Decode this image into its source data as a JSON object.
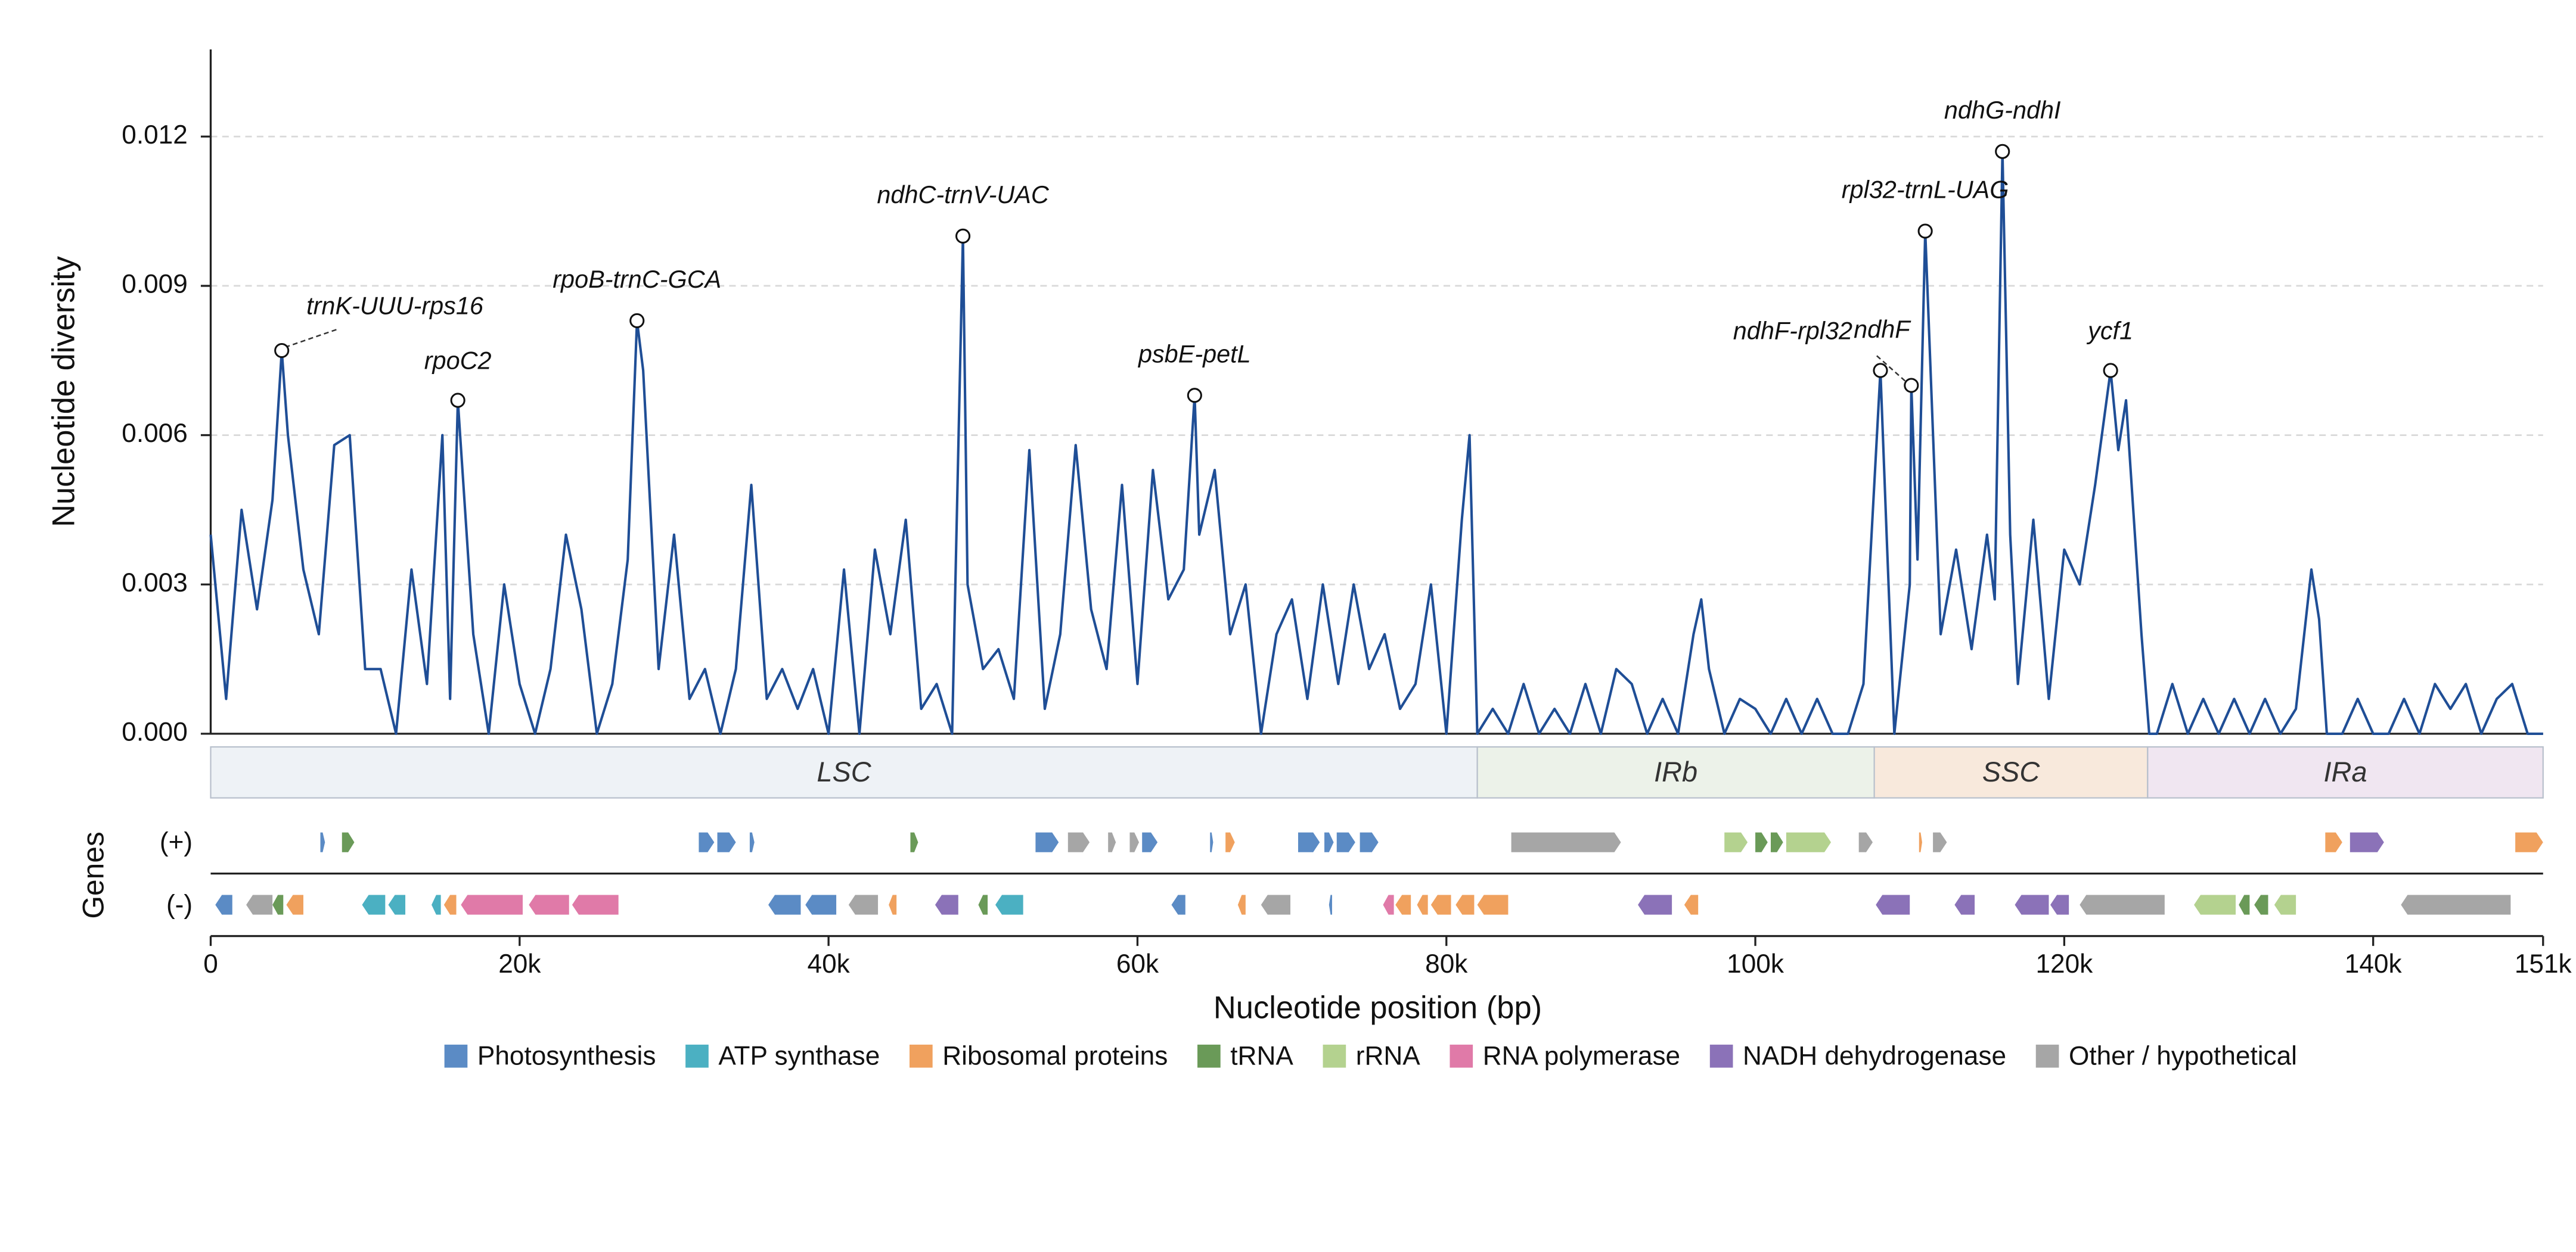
{
  "chart_data": {
    "type": "line",
    "ylabel": "Nucleotide diversity",
    "xlabel": "Nucleotide position (bp)",
    "color": "#1f4e96",
    "xlim": [
      0,
      151000
    ],
    "ylim": [
      0,
      0.01375
    ],
    "xticks": [
      0,
      {
        "value": 20000,
        "label": "20k"
      },
      {
        "value": 40000,
        "label": "40k"
      },
      {
        "value": 60000,
        "label": "60k"
      },
      {
        "value": 80000,
        "label": "80k"
      },
      {
        "value": 100000,
        "label": "100k"
      },
      {
        "value": 120000,
        "label": "120k"
      },
      {
        "value": 140000,
        "label": "140k"
      },
      {
        "value": 151000,
        "label": "151k"
      }
    ],
    "yticks": [
      {
        "value": 0,
        "label": "0.000"
      },
      0.003,
      0.006,
      0.009,
      0.012
    ],
    "grid": true,
    "x": [
      0,
      1000,
      2000,
      3000,
      4000,
      4600,
      5000,
      6000,
      7000,
      8000,
      9000,
      10000,
      11000,
      12000,
      13000,
      14000,
      15000,
      15500,
      16000,
      17000,
      18000,
      19000,
      20000,
      21000,
      22000,
      23000,
      24000,
      25000,
      26000,
      27000,
      27600,
      28000,
      29000,
      30000,
      31000,
      32000,
      33000,
      34000,
      35000,
      36000,
      37000,
      38000,
      39000,
      40000,
      41000,
      42000,
      43000,
      44000,
      45000,
      46000,
      47000,
      48000,
      48700,
      49000,
      50000,
      51000,
      52000,
      53000,
      54000,
      55000,
      56000,
      57000,
      58000,
      59000,
      60000,
      61000,
      62000,
      63000,
      63700,
      64000,
      65000,
      66000,
      67000,
      68000,
      69000,
      70000,
      71000,
      72000,
      73000,
      74000,
      75000,
      76000,
      77000,
      78000,
      79000,
      80000,
      81000,
      81500,
      82000,
      83000,
      84000,
      85000,
      86000,
      87000,
      88000,
      89000,
      90000,
      91000,
      92000,
      93000,
      94000,
      95000,
      96000,
      96500,
      97000,
      98000,
      99000,
      100000,
      101000,
      102000,
      103000,
      104000,
      105000,
      106000,
      107000,
      107700,
      108100,
      108500,
      109000,
      110000,
      110100,
      110500,
      111000,
      112000,
      113000,
      114000,
      115000,
      115500,
      116000,
      116500,
      117000,
      118000,
      119000,
      120000,
      121000,
      122000,
      123000,
      123500,
      124000,
      125000,
      125500,
      126000,
      127000,
      128000,
      129000,
      130000,
      131000,
      132000,
      133000,
      134000,
      135000,
      136000,
      136500,
      137000,
      138000,
      139000,
      140000,
      141000,
      142000,
      143000,
      144000,
      145000,
      146000,
      147000,
      148000,
      149000,
      150000,
      151000
    ],
    "values": [
      0.004,
      0.0007,
      0.0045,
      0.0025,
      0.0047,
      0.0077,
      0.006,
      0.0033,
      0.002,
      0.0058,
      0.006,
      0.0013,
      0.0013,
      0,
      0.0033,
      0.001,
      0.006,
      0.0007,
      0.0067,
      0.002,
      0,
      0.003,
      0.001,
      0,
      0.0013,
      0.004,
      0.0025,
      0,
      0.001,
      0.0035,
      0.0083,
      0.0073,
      0.0013,
      0.004,
      0.0007,
      0.0013,
      0,
      0.0013,
      0.005,
      0.0007,
      0.0013,
      0.0005,
      0.0013,
      0,
      0.0033,
      0,
      0.0037,
      0.002,
      0.0043,
      0.0005,
      0.001,
      0,
      0.01,
      0.003,
      0.0013,
      0.0017,
      0.0007,
      0.0057,
      0.0005,
      0.002,
      0.0058,
      0.0025,
      0.0013,
      0.005,
      0.001,
      0.0053,
      0.0027,
      0.0033,
      0.0068,
      0.004,
      0.0053,
      0.002,
      0.003,
      0,
      0.002,
      0.0027,
      0.0007,
      0.003,
      0.001,
      0.003,
      0.0013,
      0.002,
      0.0005,
      0.001,
      0.003,
      0,
      0.0043,
      0.006,
      0,
      0.0005,
      0,
      0.001,
      0,
      0.0005,
      0,
      0.001,
      0,
      0.0013,
      0.001,
      0,
      0.0007,
      0,
      0.002,
      0.0027,
      0.0013,
      0,
      0.0007,
      0.0005,
      0,
      0.0007,
      0,
      0.0007,
      0,
      0,
      0.001,
      0.005,
      0.0073,
      0.004,
      0,
      0.003,
      0.007,
      0.0035,
      0.0101,
      0.002,
      0.0037,
      0.0017,
      0.004,
      0.0027,
      0.0117,
      0.004,
      0.001,
      0.0043,
      0.0007,
      0.0037,
      0.003,
      0.005,
      0.0073,
      0.0057,
      0.0067,
      0.002,
      0,
      0,
      0.001,
      0,
      0.0007,
      0,
      0.0007,
      0,
      0.0007,
      0,
      0.0005,
      0.0033,
      0.0023,
      0,
      0,
      0.0007,
      0,
      0,
      0.0007,
      0,
      0.001,
      0.0005,
      0.001,
      0,
      0.0007,
      0.001,
      0,
      0
    ],
    "annotations": [
      {
        "label": "trnK-UUU-rps16",
        "x": 4600,
        "y": 0.0077
      },
      {
        "label": "rpoC2",
        "x": 16000,
        "y": 0.0067
      },
      {
        "label": "rpoB-trnC-GCA",
        "x": 27600,
        "y": 0.0083
      },
      {
        "label": "ndhC-trnV-UAC",
        "x": 48700,
        "y": 0.01
      },
      {
        "label": "psbE-petL",
        "x": 63700,
        "y": 0.0068
      },
      {
        "label": "ndhF-rpl32",
        "x": 108100,
        "y": 0.0073
      },
      {
        "label": "ndhF",
        "x": 110100,
        "y": 0.007
      },
      {
        "label": "rpl32-trnL-UAG",
        "x": 111000,
        "y": 0.0101
      },
      {
        "label": "ndhG-ndhI",
        "x": 116000,
        "y": 0.0117
      },
      {
        "label": "ycf1",
        "x": 123000,
        "y": 0.0073
      }
    ],
    "regions": [
      {
        "label": "LSC",
        "start": 0,
        "end": 82000,
        "color": "#eef2f6"
      },
      {
        "label": "IRb",
        "start": 82000,
        "end": 107700,
        "color": "#ecf2e9"
      },
      {
        "label": "SSC",
        "start": 107700,
        "end": 125400,
        "color": "#f8e9dc"
      },
      {
        "label": "IRa",
        "start": 125400,
        "end": 151000,
        "color": "#f0e6f1"
      }
    ],
    "track_title": "Genes",
    "track_labels": [
      "(+)",
      "(-)"
    ],
    "gene_groups": [
      {
        "name": "Photosynthesis",
        "color": "#5b8bc5",
        "plus": [
          [
            7100,
            7400
          ],
          [
            31600,
            32600
          ],
          [
            32800,
            34000
          ],
          [
            34900,
            35200
          ],
          [
            53400,
            54900
          ],
          [
            60300,
            61300
          ],
          [
            64700,
            64900
          ],
          [
            70400,
            71800
          ],
          [
            72100,
            72700
          ],
          [
            72900,
            74100
          ],
          [
            74400,
            75600
          ]
        ],
        "minus": [
          [
            300,
            1400
          ],
          [
            36100,
            38200
          ],
          [
            38500,
            40500
          ],
          [
            62200,
            63100
          ],
          [
            72400,
            72600
          ]
        ]
      },
      {
        "name": "ATP synthase",
        "color": "#4bb0c2",
        "plus": [],
        "minus": [
          [
            9800,
            11300
          ],
          [
            11500,
            12600
          ],
          [
            14300,
            14900
          ],
          [
            50800,
            52600
          ]
        ]
      },
      {
        "name": "Ribosomal proteins",
        "color": "#f0a15e",
        "plus": [
          [
            65700,
            66300
          ],
          [
            110600,
            110800
          ],
          [
            136900,
            138000
          ],
          [
            149200,
            151000
          ]
        ],
        "minus": [
          [
            4900,
            6000
          ],
          [
            15100,
            15900
          ],
          [
            43900,
            44400
          ],
          [
            66500,
            67000
          ],
          [
            76700,
            77700
          ],
          [
            78100,
            78800
          ],
          [
            79000,
            80300
          ],
          [
            80600,
            81800
          ],
          [
            82000,
            84000
          ],
          [
            95400,
            96300
          ]
        ]
      },
      {
        "name": "tRNA",
        "color": "#6a9a58",
        "plus": [
          [
            8500,
            9300
          ],
          [
            45300,
            45800
          ],
          [
            100000,
            100800
          ],
          [
            101000,
            101800
          ]
        ],
        "minus": [
          [
            4000,
            4700
          ],
          [
            49700,
            50300
          ],
          [
            131300,
            132000
          ],
          [
            132300,
            133200
          ]
        ]
      },
      {
        "name": "rRNA",
        "color": "#b4d28f",
        "plus": [
          [
            98000,
            99500
          ],
          [
            102000,
            104900
          ]
        ],
        "minus": [
          [
            128400,
            131100
          ],
          [
            133600,
            135000
          ]
        ]
      },
      {
        "name": "RNA polymerase",
        "color": "#e07aa8",
        "plus": [],
        "minus": [
          [
            16200,
            20200
          ],
          [
            20600,
            23200
          ],
          [
            23400,
            26400
          ],
          [
            75900,
            76600
          ]
        ]
      },
      {
        "name": "NADH dehydrogenase",
        "color": "#8b72b8",
        "plus": [
          [
            138500,
            140700
          ]
        ],
        "minus": [
          [
            46900,
            48400
          ],
          [
            92400,
            94600
          ],
          [
            107800,
            110000
          ],
          [
            112900,
            114200
          ],
          [
            116800,
            119000
          ],
          [
            119100,
            120300
          ]
        ]
      },
      {
        "name": "Other / hypothetical",
        "color": "#a6a6a6",
        "plus": [
          [
            55500,
            56900
          ],
          [
            58100,
            58600
          ],
          [
            59500,
            60100
          ],
          [
            84200,
            91300
          ],
          [
            106700,
            107600
          ],
          [
            111500,
            112400
          ]
        ],
        "minus": [
          [
            2300,
            4000
          ],
          [
            41300,
            43200
          ],
          [
            68000,
            69900
          ],
          [
            121000,
            126500
          ],
          [
            141800,
            148900
          ]
        ]
      }
    ]
  }
}
